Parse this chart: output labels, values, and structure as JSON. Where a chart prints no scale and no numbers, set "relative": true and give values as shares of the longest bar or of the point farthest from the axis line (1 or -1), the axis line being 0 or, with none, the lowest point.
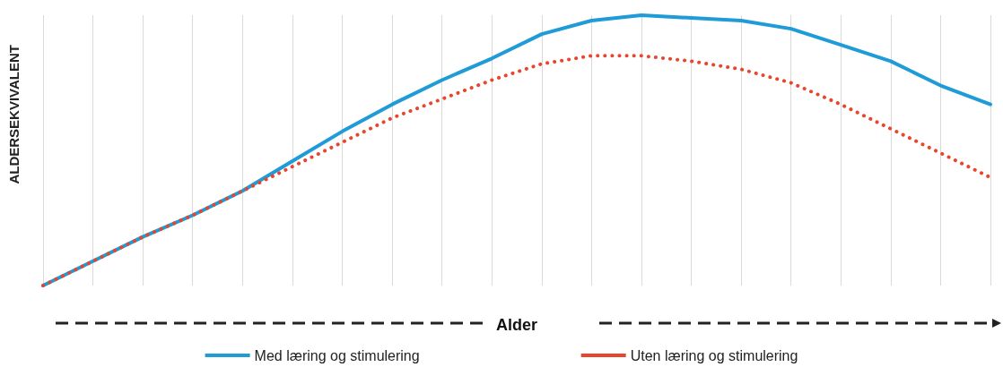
{
  "chart_data": {
    "type": "line",
    "relative": true,
    "xlabel": "Alder",
    "ylabel": "ALDERSEKVIVALENT",
    "categories": [
      null,
      null,
      null,
      null,
      null,
      null,
      null,
      null,
      null,
      null,
      null,
      null,
      null,
      null,
      null,
      null,
      null,
      null,
      null,
      null
    ],
    "series": [
      {
        "name": "Med læring og stimulering",
        "color": "#1f9bd7",
        "line_style": "solid",
        "values": [
          0,
          0.09,
          0.18,
          0.26,
          0.35,
          0.46,
          0.57,
          0.67,
          0.76,
          0.84,
          0.93,
          0.98,
          1,
          0.99,
          0.98,
          0.95,
          0.89,
          0.83,
          0.74,
          0.67
        ]
      },
      {
        "name": "Uten læring og stimulering",
        "color": "#e8452c",
        "line_style": "dotted",
        "values": [
          0,
          0.09,
          0.18,
          0.26,
          0.35,
          0.44,
          0.53,
          0.62,
          0.69,
          0.76,
          0.82,
          0.85,
          0.85,
          0.83,
          0.8,
          0.75,
          0.67,
          0.58,
          0.49,
          0.4
        ]
      }
    ],
    "grid": "x",
    "legend": "bottom",
    "marker": "none"
  }
}
